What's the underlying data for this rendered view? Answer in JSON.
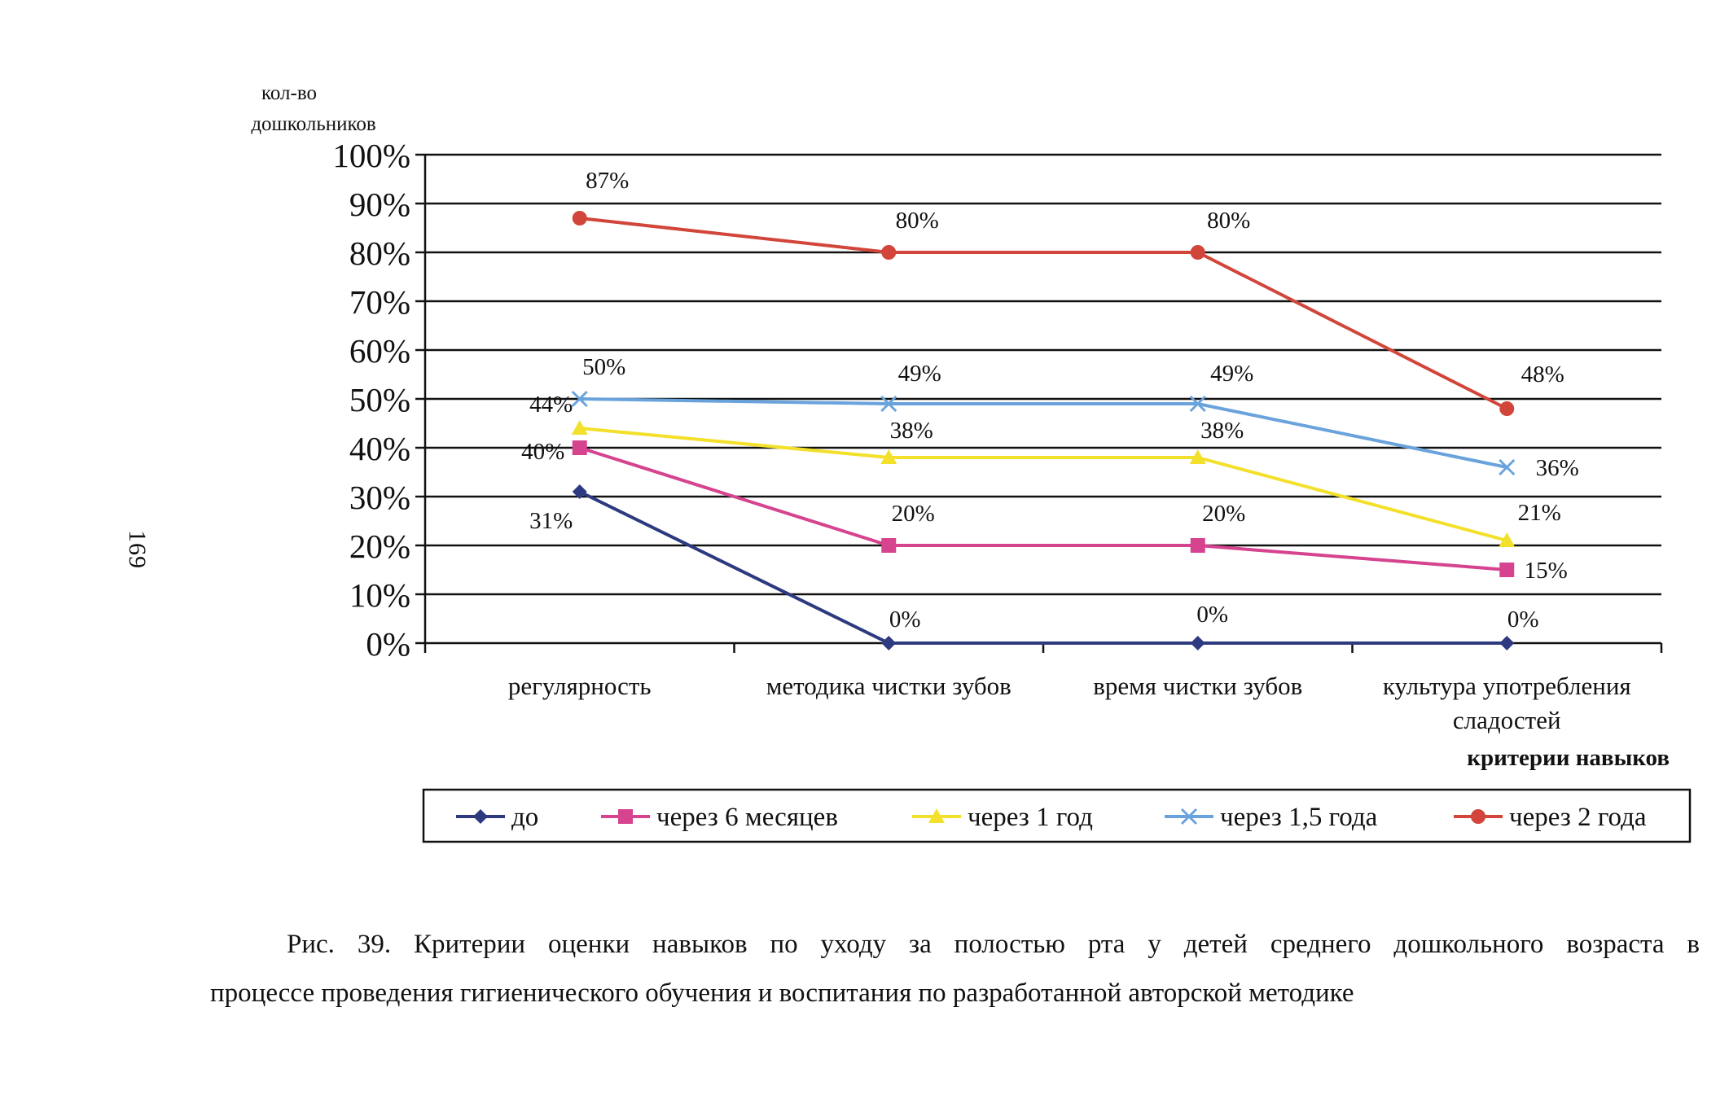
{
  "page_number": "169",
  "caption": {
    "line1": "Рис. 39. Критерии оценки навыков по уходу за полостью рта у детей среднего дошкольного возраста в",
    "line2": "процессе проведения гигиенического обучения и воспитания по разработанной авторской методике"
  },
  "colors": {
    "до": "#2e3a80",
    "через 6 месяцев": "#d6438f",
    "через 1 год": "#f2e02a",
    "через 1,5 года": "#6aa3dc",
    "через 2 года": "#d1453a"
  },
  "chart_data": {
    "type": "line",
    "ylabel": [
      "кол-во",
      "дошкольников"
    ],
    "xlabel": "критерии навыков",
    "ylim": [
      0,
      100
    ],
    "yticks": [
      "0%",
      "10%",
      "20%",
      "30%",
      "40%",
      "50%",
      "60%",
      "70%",
      "80%",
      "90%",
      "100%"
    ],
    "categories": [
      [
        "регулярность"
      ],
      [
        "методика чистки зубов"
      ],
      [
        "время чистки зубов"
      ],
      [
        "культура употребления",
        "сладостей"
      ]
    ],
    "grid": true,
    "legend_position": "bottom",
    "series": [
      {
        "name": "до",
        "marker": "diamond",
        "values": [
          31,
          0,
          0,
          0
        ],
        "labels": [
          "31%",
          "0%",
          "0%",
          "0%"
        ]
      },
      {
        "name": "через 6 месяцев",
        "marker": "square",
        "values": [
          40,
          20,
          20,
          15
        ],
        "labels": [
          "40%",
          "20%",
          "20%",
          "15%"
        ]
      },
      {
        "name": "через 1 год",
        "marker": "triangle",
        "values": [
          44,
          38,
          38,
          21
        ],
        "labels": [
          "44%",
          "38%",
          "38%",
          "21%"
        ]
      },
      {
        "name": "через 1,5 года",
        "marker": "x",
        "values": [
          50,
          49,
          49,
          36
        ],
        "labels": [
          "50%",
          "49%",
          "49%",
          "36%"
        ]
      },
      {
        "name": "через 2 года",
        "marker": "circle",
        "values": [
          87,
          80,
          80,
          48
        ],
        "labels": [
          "87%",
          "80%",
          "80%",
          "48%"
        ]
      }
    ]
  }
}
